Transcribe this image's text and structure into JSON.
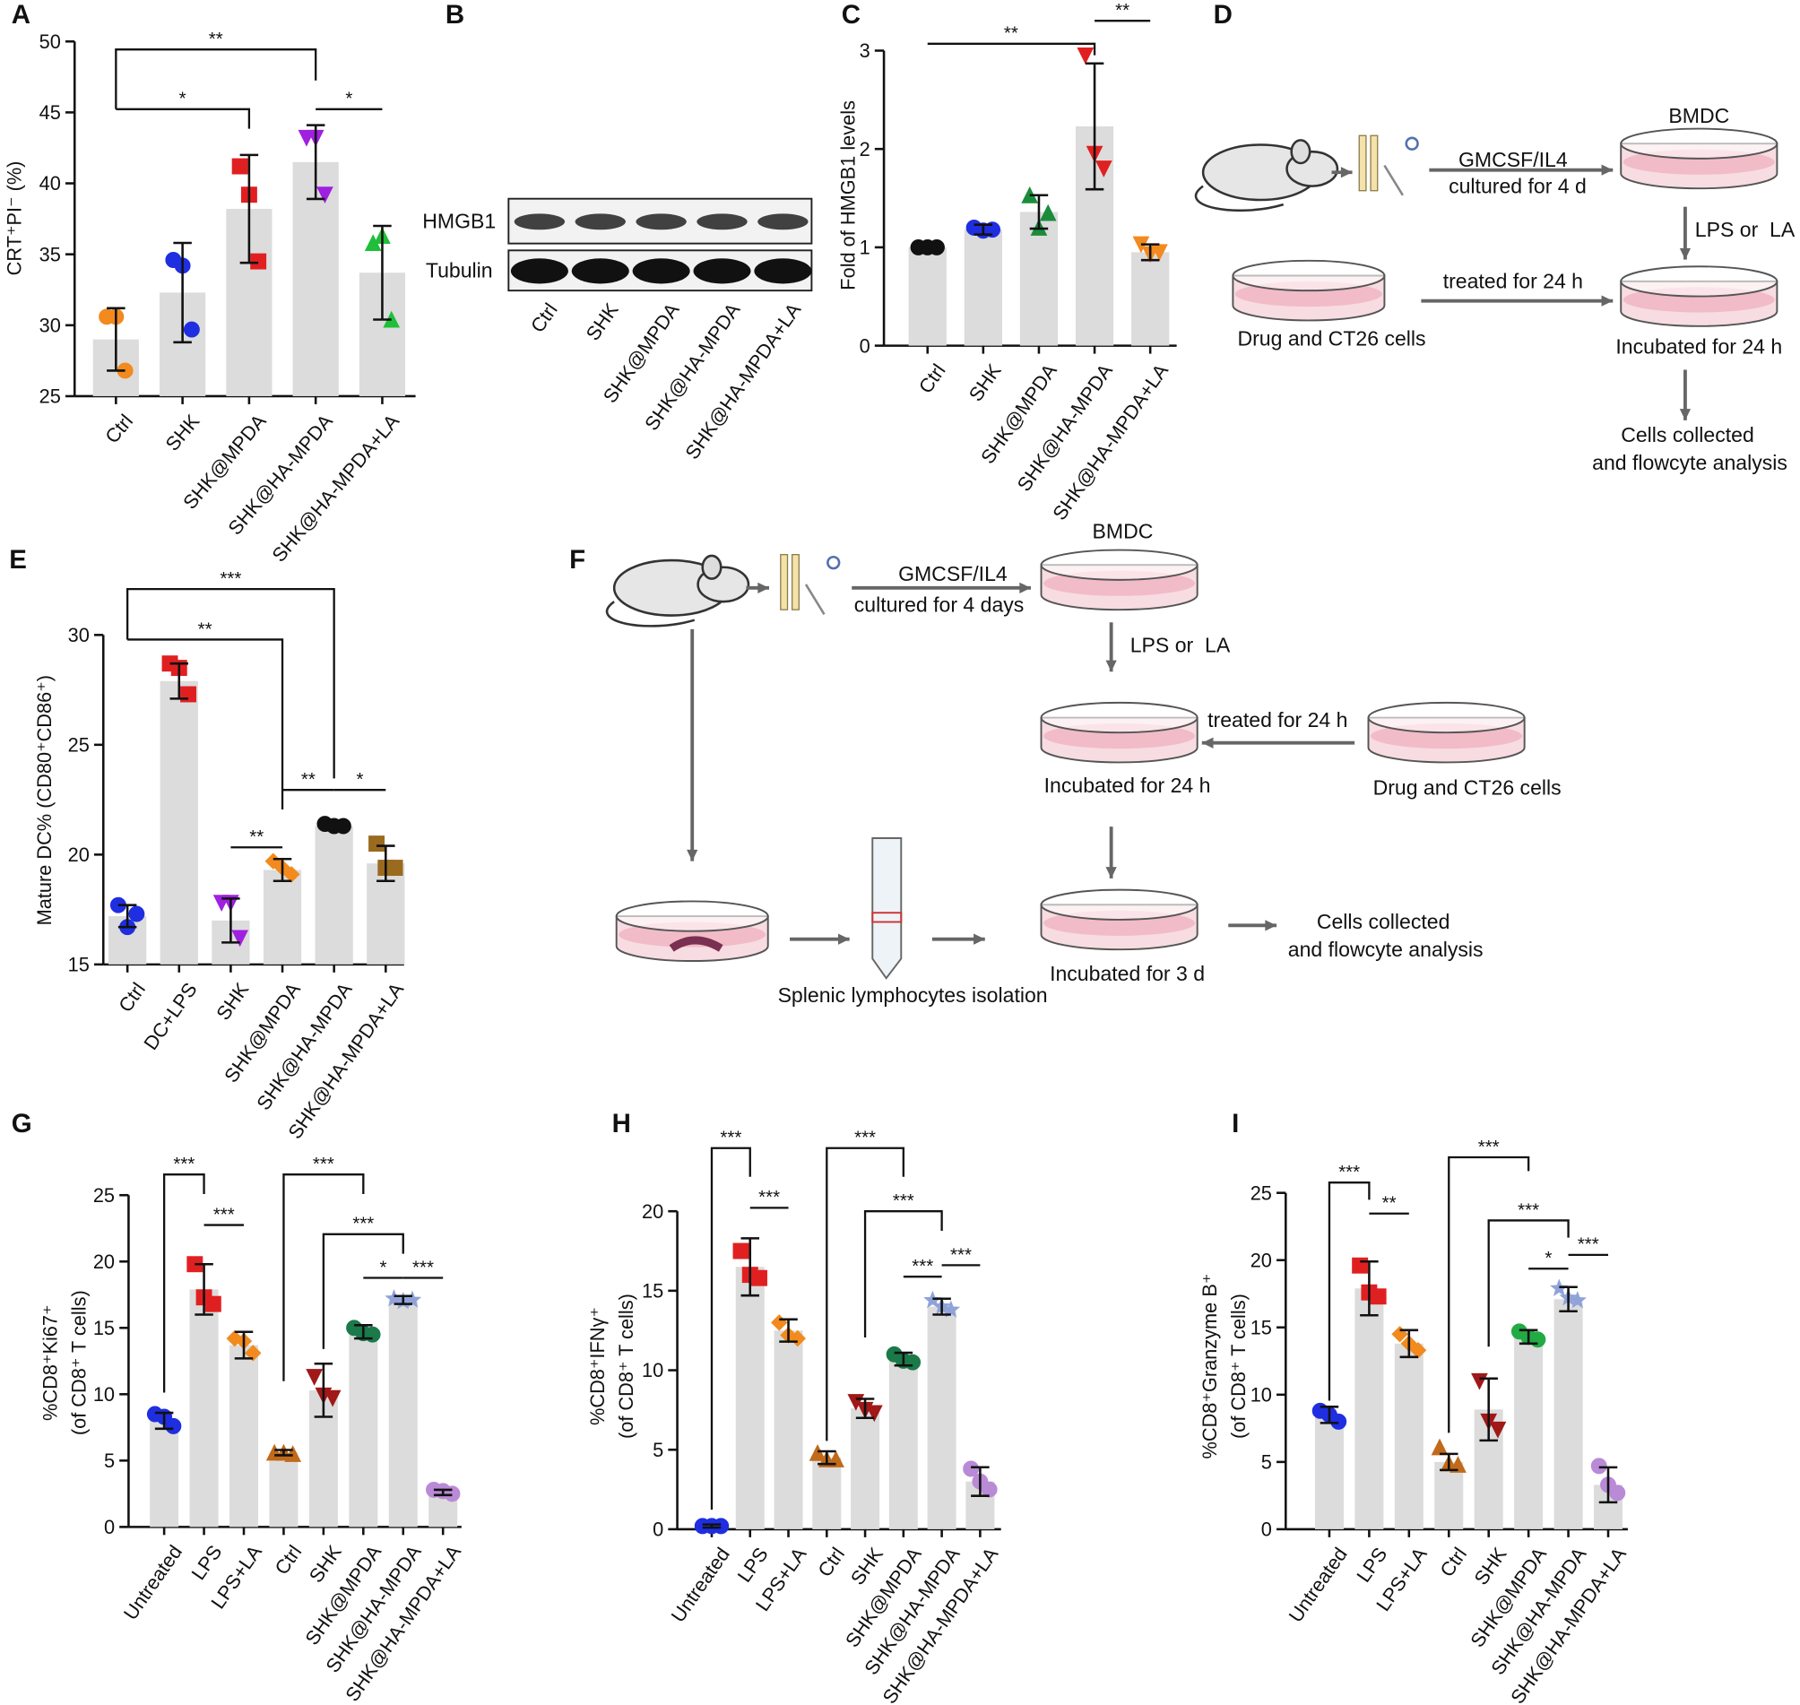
{
  "chart_data": [
    {
      "panel": "A",
      "type": "bar",
      "ylabel": [
        "CRT⁺PI⁻ (%)"
      ],
      "categories": [
        "Ctrl",
        "SHK",
        "SHK@MPDA",
        "SHK@HA-MPDA",
        "SHK@HA-MPDA+LA"
      ],
      "values": [
        29,
        32.3,
        38.2,
        41.5,
        33.7
      ],
      "errors": [
        2.2,
        3.5,
        3.8,
        2.6,
        3.3
      ],
      "points": [
        [
          30.6,
          30.6,
          26.8
        ],
        [
          34.6,
          34.2,
          29.7
        ],
        [
          41.2,
          39.2,
          34.5
        ],
        [
          43.2,
          43.2,
          39.2
        ],
        [
          35.8,
          36.3,
          30.4
        ]
      ],
      "colors": [
        "#f28a1e",
        "#1f2ee0",
        "#e02020",
        "#a020e0",
        "#1fbf3a"
      ],
      "markers": [
        "circle",
        "circle",
        "square",
        "invtriangle",
        "triangle"
      ],
      "ylim": [
        25,
        50
      ],
      "yticks": [
        25,
        30,
        35,
        40,
        45,
        50
      ],
      "significance": [
        {
          "from": 0,
          "to": 3,
          "label": "**"
        },
        {
          "from": 0,
          "to": 2,
          "label": "*"
        },
        {
          "from": 3,
          "to": 4,
          "label": "*"
        }
      ]
    },
    {
      "panel": "C",
      "type": "bar",
      "ylabel": [
        "Fold of HMGB1 levels"
      ],
      "categories": [
        "Ctrl",
        "SHK",
        "SHK@MPDA",
        "SHK@HA-MPDA",
        "SHK@HA-MPDA+LA"
      ],
      "values": [
        1.0,
        1.18,
        1.36,
        2.23,
        0.95
      ],
      "errors": [
        0,
        0.05,
        0.17,
        0.64,
        0.08
      ],
      "points": [
        [
          1.0,
          1.0,
          1.0
        ],
        [
          1.2,
          1.17,
          1.18
        ],
        [
          1.53,
          1.2,
          1.35
        ],
        [
          2.95,
          1.95,
          1.8
        ],
        [
          1.03,
          0.93,
          0.95
        ]
      ],
      "colors": [
        "#111111",
        "#1f2ee0",
        "#1a8c3a",
        "#e02020",
        "#f28a1e"
      ],
      "markers": [
        "circle",
        "circle",
        "triangle",
        "invtriangle",
        "invtriangle"
      ],
      "ylim": [
        0,
        3
      ],
      "yticks": [
        0,
        1,
        2,
        3
      ],
      "significance": [
        {
          "from": 0,
          "to": 3,
          "label": "**"
        },
        {
          "from": 3,
          "to": 4,
          "label": "**"
        }
      ]
    },
    {
      "panel": "E",
      "type": "bar",
      "ylabel": [
        "Mature DC% (CD80⁺CD86⁺)"
      ],
      "categories": [
        "Ctrl",
        "DC+LPS",
        "SHK",
        "SHK@MPDA",
        "SHK@HA-MPDA",
        "SHK@HA-MPDA+LA"
      ],
      "values": [
        17.2,
        27.9,
        17.0,
        19.3,
        21.3,
        19.6
      ],
      "errors": [
        0.5,
        0.8,
        1.0,
        0.5,
        0.2,
        0.8
      ],
      "points": [
        [
          17.7,
          16.7,
          17.3
        ],
        [
          28.7,
          28.5,
          27.3
        ],
        [
          17.8,
          17.8,
          16.2
        ],
        [
          19.7,
          19.4,
          19.1
        ],
        [
          21.4,
          21.3,
          21.3
        ],
        [
          20.5,
          19.4,
          19.4
        ]
      ],
      "colors": [
        "#1f2ee0",
        "#e02020",
        "#a020e0",
        "#f28a1e",
        "#111111",
        "#9a6a1f"
      ],
      "markers": [
        "circle",
        "square",
        "invtriangle",
        "diamond",
        "circle",
        "square"
      ],
      "ylim": [
        15,
        30
      ],
      "yticks": [
        15,
        20,
        25,
        30
      ],
      "significance": [
        {
          "from": 0,
          "to": 4,
          "label": "***"
        },
        {
          "from": 0,
          "to": 3,
          "label": "**"
        },
        {
          "from": 2,
          "to": 3,
          "label": "**"
        },
        {
          "from": 3,
          "to": 4,
          "label": "**"
        },
        {
          "from": 4,
          "to": 5,
          "label": "*"
        }
      ]
    },
    {
      "panel": "G",
      "type": "bar",
      "ylabel": [
        "%CD8⁺Ki67⁺",
        "(of CD8⁺ T cells)"
      ],
      "categories": [
        "Untreated",
        "LPS",
        "LPS+LA",
        "Ctrl",
        "SHK",
        "SHK@MPDA",
        "SHK@HA-MPDA",
        "SHK@HA-MPDA+LA"
      ],
      "values": [
        8.0,
        17.9,
        13.7,
        5.6,
        10.3,
        14.7,
        17.1,
        2.6
      ],
      "errors": [
        0.6,
        1.9,
        1.0,
        0.2,
        2.0,
        0.5,
        0.3,
        0.2
      ],
      "points": [
        [
          8.5,
          8.3,
          7.6
        ],
        [
          19.8,
          17.3,
          16.8
        ],
        [
          14.2,
          14.0,
          13.1
        ],
        [
          5.6,
          5.6,
          5.5
        ],
        [
          11.3,
          9.9,
          9.7
        ],
        [
          15.0,
          14.6,
          14.5
        ],
        [
          17.2,
          17.0,
          17.1
        ],
        [
          2.8,
          2.7,
          2.5
        ]
      ],
      "colors": [
        "#1f2ee0",
        "#e02020",
        "#f28a1e",
        "#c06a1a",
        "#a01818",
        "#1a7a4a",
        "#8fa3d9",
        "#b98ad6"
      ],
      "markers": [
        "circle",
        "square",
        "diamond",
        "triangle",
        "invtriangle",
        "circle",
        "star",
        "circle"
      ],
      "ylim": [
        0,
        25
      ],
      "yticks": [
        0,
        5,
        10,
        15,
        20,
        25
      ],
      "significance": [
        {
          "from": 0,
          "to": 1,
          "label": "***"
        },
        {
          "from": 1,
          "to": 2,
          "label": "***"
        },
        {
          "from": 3,
          "to": 5,
          "label": "***"
        },
        {
          "from": 4,
          "to": 6,
          "label": "***"
        },
        {
          "from": 5,
          "to": 6,
          "label": "*"
        },
        {
          "from": 6,
          "to": 7,
          "label": "***"
        }
      ]
    },
    {
      "panel": "H",
      "type": "bar",
      "ylabel": [
        "%CD8⁺IFNγ⁺",
        "(of CD8⁺ T cells)"
      ],
      "categories": [
        "Untreated",
        "LPS",
        "LPS+LA",
        "Ctrl",
        "SHK",
        "SHK@MPDA",
        "SHK@HA-MPDA",
        "SHK@HA-MPDA+LA"
      ],
      "values": [
        0.2,
        16.5,
        12.5,
        4.5,
        7.6,
        10.7,
        14.0,
        3.0
      ],
      "errors": [
        0.1,
        1.8,
        0.7,
        0.4,
        0.6,
        0.4,
        0.5,
        0.9
      ],
      "points": [
        [
          0.2,
          0.2,
          0.2
        ],
        [
          17.5,
          16.0,
          15.8
        ],
        [
          13.0,
          12.2,
          12.0
        ],
        [
          4.8,
          4.4,
          4.4
        ],
        [
          8.0,
          7.5,
          7.3
        ],
        [
          11.0,
          10.6,
          10.5
        ],
        [
          14.4,
          14.0,
          13.8
        ],
        [
          3.8,
          3.0,
          2.5
        ]
      ],
      "colors": [
        "#1f2ee0",
        "#e02020",
        "#f28a1e",
        "#c06a1a",
        "#a01818",
        "#1a7a4a",
        "#8fa3d9",
        "#b98ad6"
      ],
      "markers": [
        "circle",
        "square",
        "diamond",
        "triangle",
        "invtriangle",
        "circle",
        "star",
        "circle"
      ],
      "ylim": [
        0,
        20
      ],
      "yticks": [
        0,
        5,
        10,
        15,
        20
      ],
      "significance": [
        {
          "from": 0,
          "to": 1,
          "label": "***"
        },
        {
          "from": 1,
          "to": 2,
          "label": "***"
        },
        {
          "from": 3,
          "to": 5,
          "label": "***"
        },
        {
          "from": 4,
          "to": 6,
          "label": "***"
        },
        {
          "from": 5,
          "to": 6,
          "label": "***"
        },
        {
          "from": 6,
          "to": 7,
          "label": "***"
        }
      ]
    },
    {
      "panel": "I",
      "type": "bar",
      "ylabel": [
        "%CD8⁺Granzyme B⁺",
        "(of CD8⁺ T cells)"
      ],
      "categories": [
        "Untreated",
        "LPS",
        "LPS+LA",
        "Ctrl",
        "SHK",
        "SHK@MPDA",
        "SHK@HA-MPDA",
        "SHK@HA-MPDA+LA"
      ],
      "values": [
        8.5,
        17.9,
        13.8,
        5.0,
        8.9,
        14.3,
        17.1,
        3.3
      ],
      "errors": [
        0.6,
        2.0,
        1.0,
        0.6,
        2.3,
        0.5,
        0.9,
        1.3
      ],
      "points": [
        [
          8.8,
          8.5,
          8.0
        ],
        [
          19.6,
          17.6,
          17.3
        ],
        [
          14.5,
          13.8,
          13.3
        ],
        [
          6.1,
          4.9,
          4.8
        ],
        [
          11.0,
          8.0,
          7.4
        ],
        [
          14.7,
          14.3,
          14.1
        ],
        [
          17.9,
          17.2,
          17.0
        ],
        [
          4.7,
          3.3,
          2.7
        ]
      ],
      "colors": [
        "#1f2ee0",
        "#e02020",
        "#f28a1e",
        "#c06a1a",
        "#a01818",
        "#22aa44",
        "#8fa3d9",
        "#b98ad6"
      ],
      "markers": [
        "circle",
        "square",
        "diamond",
        "triangle",
        "invtriangle",
        "circle",
        "star",
        "circle"
      ],
      "ylim": [
        0,
        25
      ],
      "yticks": [
        0,
        5,
        10,
        15,
        20,
        25
      ],
      "significance": [
        {
          "from": 0,
          "to": 1,
          "label": "***"
        },
        {
          "from": 1,
          "to": 2,
          "label": "**"
        },
        {
          "from": 3,
          "to": 5,
          "label": "***"
        },
        {
          "from": 4,
          "to": 6,
          "label": "***"
        },
        {
          "from": 5,
          "to": 6,
          "label": "*"
        },
        {
          "from": 6,
          "to": 7,
          "label": "***"
        }
      ]
    }
  ],
  "blot": {
    "panel": "B",
    "bands": [
      "HMGB1",
      "Tubulin"
    ],
    "lanes": [
      "Ctrl",
      "SHK",
      "SHK@MPDA",
      "SHK@HA-MPDA",
      "SHK@HA-MPDA+LA"
    ]
  },
  "diagram_d": {
    "panel": "D",
    "labels": [
      "BMDC",
      "GMCSF/IL4",
      "cultured for 4 d",
      "LPS or  LA",
      "treated for 24 h",
      "Drug and CT26 cells",
      "Incubated for 24 h",
      "Cells collected",
      "and flowcyte analysis"
    ]
  },
  "diagram_f": {
    "panel": "F",
    "labels": [
      "BMDC",
      "GMCSF/IL4",
      "cultured for 4 days",
      "LPS or  LA",
      "treated for 24 h",
      "Incubated for 24 h",
      "Drug and CT26 cells",
      "Splenic lymphocytes isolation",
      "Incubated for 3 d",
      "Cells collected",
      "and flowcyte analysis"
    ]
  }
}
